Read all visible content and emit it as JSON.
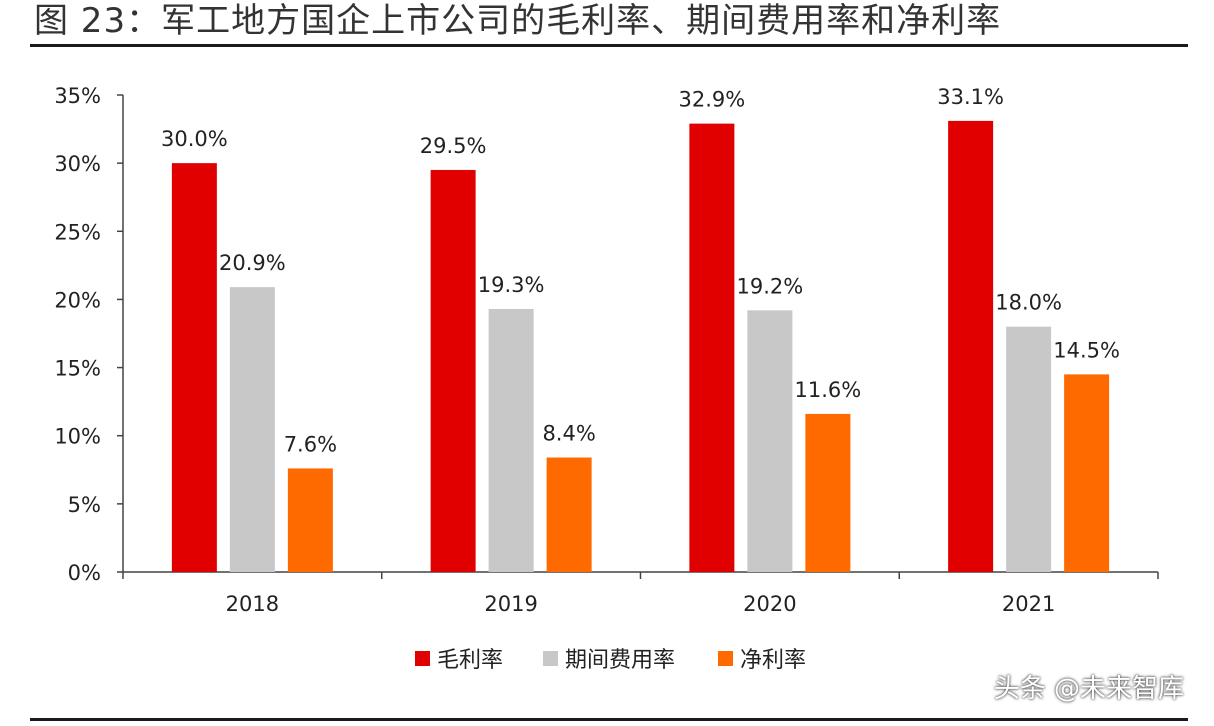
{
  "figure_title": "图 23：军工地方国企上市公司的毛利率、期间费用率和净利率",
  "watermark": "头条 @未来智库",
  "chart_data": {
    "type": "bar",
    "title": "",
    "xlabel": "",
    "ylabel": "",
    "categories": [
      "2018",
      "2019",
      "2020",
      "2021"
    ],
    "ylim": [
      0,
      35
    ],
    "yticks": [
      0,
      5,
      10,
      15,
      20,
      25,
      30,
      35
    ],
    "ytick_labels": [
      "0%",
      "5%",
      "10%",
      "15%",
      "20%",
      "25%",
      "30%",
      "35%"
    ],
    "grid": false,
    "legend_position": "bottom",
    "series": [
      {
        "name": "毛利率",
        "color": "#e00000",
        "values": [
          30.0,
          29.5,
          32.9,
          33.1
        ],
        "labels": [
          "30.0%",
          "29.5%",
          "32.9%",
          "33.1%"
        ]
      },
      {
        "name": "期间费用率",
        "color": "#c8c8c8",
        "values": [
          20.9,
          19.3,
          19.2,
          18.0
        ],
        "labels": [
          "20.9%",
          "19.3%",
          "19.2%",
          "18.0%"
        ]
      },
      {
        "name": "净利率",
        "color": "#ff6a00",
        "values": [
          7.6,
          8.4,
          11.6,
          14.5
        ],
        "labels": [
          "7.6%",
          "8.4%",
          "11.6%",
          "14.5%"
        ]
      }
    ]
  }
}
